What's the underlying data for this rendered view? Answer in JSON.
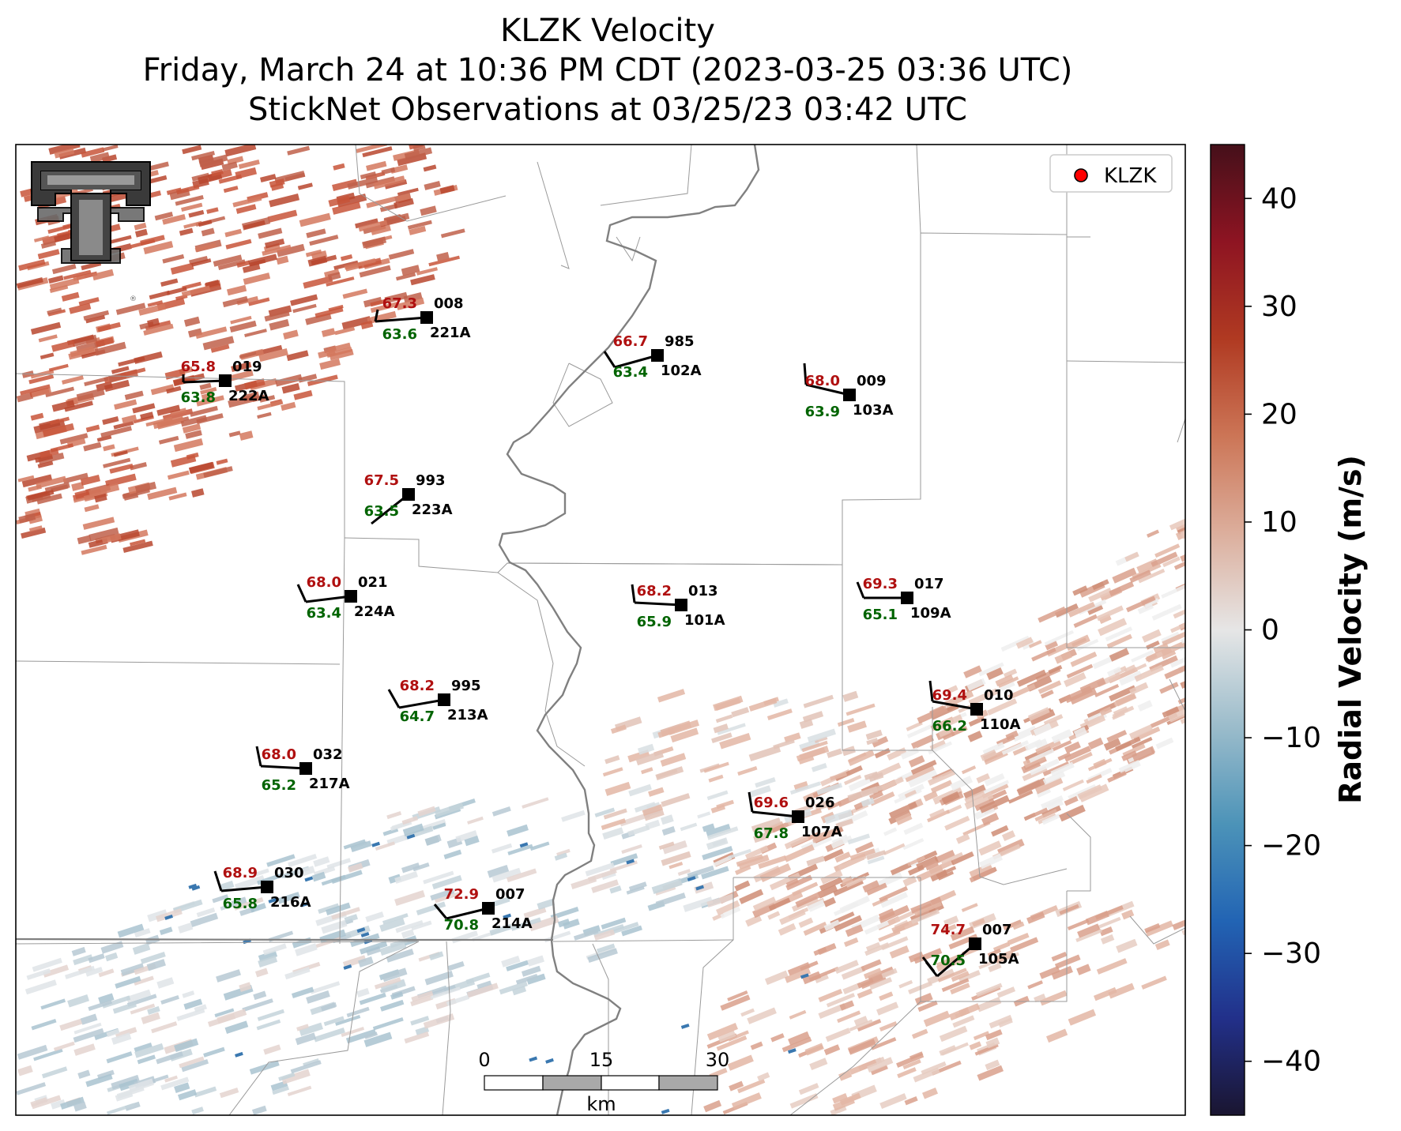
{
  "title": {
    "line1": "KLZK Velocity",
    "line2": "Friday, March 24 at 10:36 PM CDT (2023-03-25 03:36 UTC)",
    "line3": "StickNet Observations at 03/25/23 03:42 UTC"
  },
  "legend": {
    "label": "KLZK",
    "marker_color": "#ff0000"
  },
  "logo": {
    "name": "texas-tech-double-t-logo"
  },
  "scalebar": {
    "labels": [
      "0",
      "15",
      "30"
    ],
    "unit": "km"
  },
  "colorbar": {
    "label": "Radial Velocity (m/s)",
    "ticks": [
      "40",
      "30",
      "20",
      "10",
      "0",
      "−10",
      "−20",
      "−30",
      "−40"
    ],
    "range": [
      -45,
      45
    ],
    "colors": [
      "#1a1530",
      "#22308a",
      "#2264b4",
      "#4c93b8",
      "#9bbccb",
      "#e6e6e6",
      "#dcae9c",
      "#cc7556",
      "#b03a22",
      "#8e1422",
      "#45101a"
    ]
  },
  "colors": {
    "temperature": "#b01010",
    "dewpoint": "#006400",
    "station": "#000000",
    "pos_velocity": "#c8553a",
    "light_pos_velocity": "#e3b6a5",
    "neg_velocity": "#a9c3d0",
    "blue_velocity": "#3a78b0"
  },
  "stations": [
    {
      "id": "221A",
      "temp": "67.3",
      "dew": "63.6",
      "pres": "008"
    },
    {
      "id": "222A",
      "temp": "65.8",
      "dew": "63.8",
      "pres": "019"
    },
    {
      "id": "102A",
      "temp": "66.7",
      "dew": "63.4",
      "pres": "985"
    },
    {
      "id": "103A",
      "temp": "68.0",
      "dew": "63.9",
      "pres": "009"
    },
    {
      "id": "223A",
      "temp": "67.5",
      "dew": "63.5",
      "pres": "993"
    },
    {
      "id": "224A",
      "temp": "68.0",
      "dew": "63.4",
      "pres": "021"
    },
    {
      "id": "101A",
      "temp": "68.2",
      "dew": "65.9",
      "pres": "013"
    },
    {
      "id": "109A",
      "temp": "69.3",
      "dew": "65.1",
      "pres": "017"
    },
    {
      "id": "213A",
      "temp": "68.2",
      "dew": "64.7",
      "pres": "995"
    },
    {
      "id": "110A",
      "temp": "69.4",
      "dew": "66.2",
      "pres": "010"
    },
    {
      "id": "217A",
      "temp": "68.0",
      "dew": "65.2",
      "pres": "032"
    },
    {
      "id": "107A",
      "temp": "69.6",
      "dew": "67.8",
      "pres": "026"
    },
    {
      "id": "216A",
      "temp": "68.9",
      "dew": "65.8",
      "pres": "030"
    },
    {
      "id": "214A",
      "temp": "72.9",
      "dew": "70.8",
      "pres": "007"
    },
    {
      "id": "105A",
      "temp": "74.7",
      "dew": "70.5",
      "pres": "007"
    }
  ]
}
